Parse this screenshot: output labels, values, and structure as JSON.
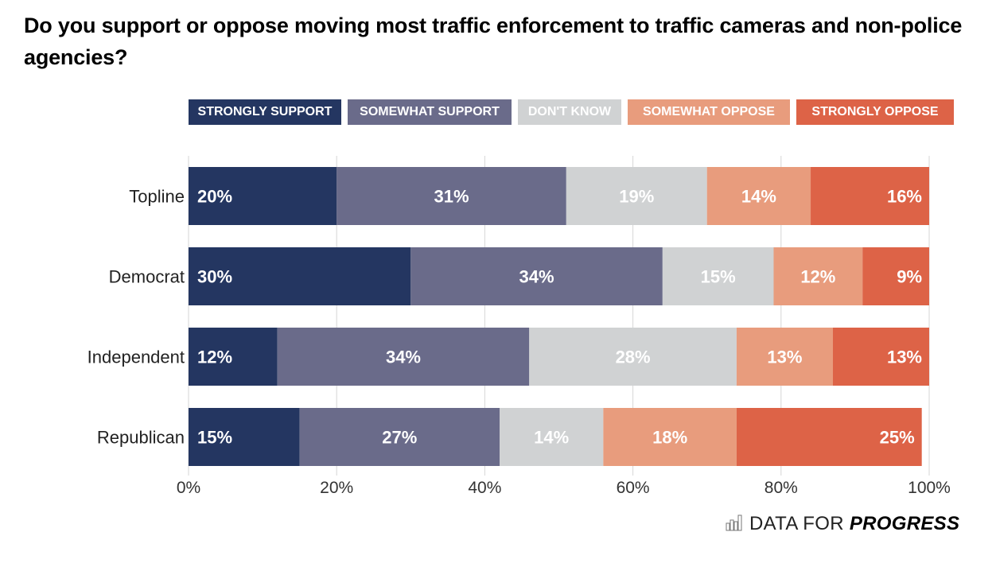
{
  "chart_data": {
    "type": "bar",
    "orientation": "horizontal",
    "stacked": true,
    "title": "Do you support or oppose moving most traffic enforcement to traffic cameras and non-police agencies?",
    "xlabel": "",
    "ylabel": "",
    "xlim": [
      0,
      100
    ],
    "x_ticks": [
      "0%",
      "20%",
      "40%",
      "60%",
      "80%",
      "100%"
    ],
    "x_tick_values": [
      0,
      20,
      40,
      60,
      80,
      100
    ],
    "grid": "vertical",
    "legend_position": "top",
    "categories": [
      "Topline",
      "Democrat",
      "Independent",
      "Republican"
    ],
    "series": [
      {
        "name": "STRONGLY SUPPORT",
        "color": "#243661",
        "values": [
          20,
          30,
          12,
          15
        ],
        "labels": [
          "20%",
          "30%",
          "12%",
          "15%"
        ]
      },
      {
        "name": "SOMEWHAT SUPPORT",
        "color": "#6a6b8a",
        "values": [
          31,
          34,
          34,
          27
        ],
        "labels": [
          "31%",
          "34%",
          "34%",
          "27%"
        ]
      },
      {
        "name": "DON'T KNOW",
        "color": "#d0d2d3",
        "values": [
          19,
          15,
          28,
          14
        ],
        "labels": [
          "19%",
          "15%",
          "28%",
          "14%"
        ]
      },
      {
        "name": "SOMEWHAT OPPOSE",
        "color": "#e89c7d",
        "values": [
          14,
          12,
          13,
          18
        ],
        "labels": [
          "14%",
          "12%",
          "13%",
          "18%"
        ]
      },
      {
        "name": "STRONGLY OPPOSE",
        "color": "#dd6347",
        "values": [
          16,
          9,
          13,
          25
        ],
        "labels": [
          "16%",
          "9%",
          "13%",
          "25%"
        ]
      }
    ]
  },
  "legend": [
    {
      "label": "STRONGLY SUPPORT",
      "color": "#243661"
    },
    {
      "label": "SOMEWHAT SUPPORT",
      "color": "#6a6b8a"
    },
    {
      "label": "DON'T KNOW",
      "color": "#d0d2d3"
    },
    {
      "label": "SOMEWHAT OPPOSE",
      "color": "#e89c7d"
    },
    {
      "label": "STRONGLY OPPOSE",
      "color": "#dd6347"
    }
  ],
  "brand": {
    "icon": "bar-chart-icon",
    "text_light": "DATA FOR ",
    "text_bold": "PROGRESS"
  }
}
